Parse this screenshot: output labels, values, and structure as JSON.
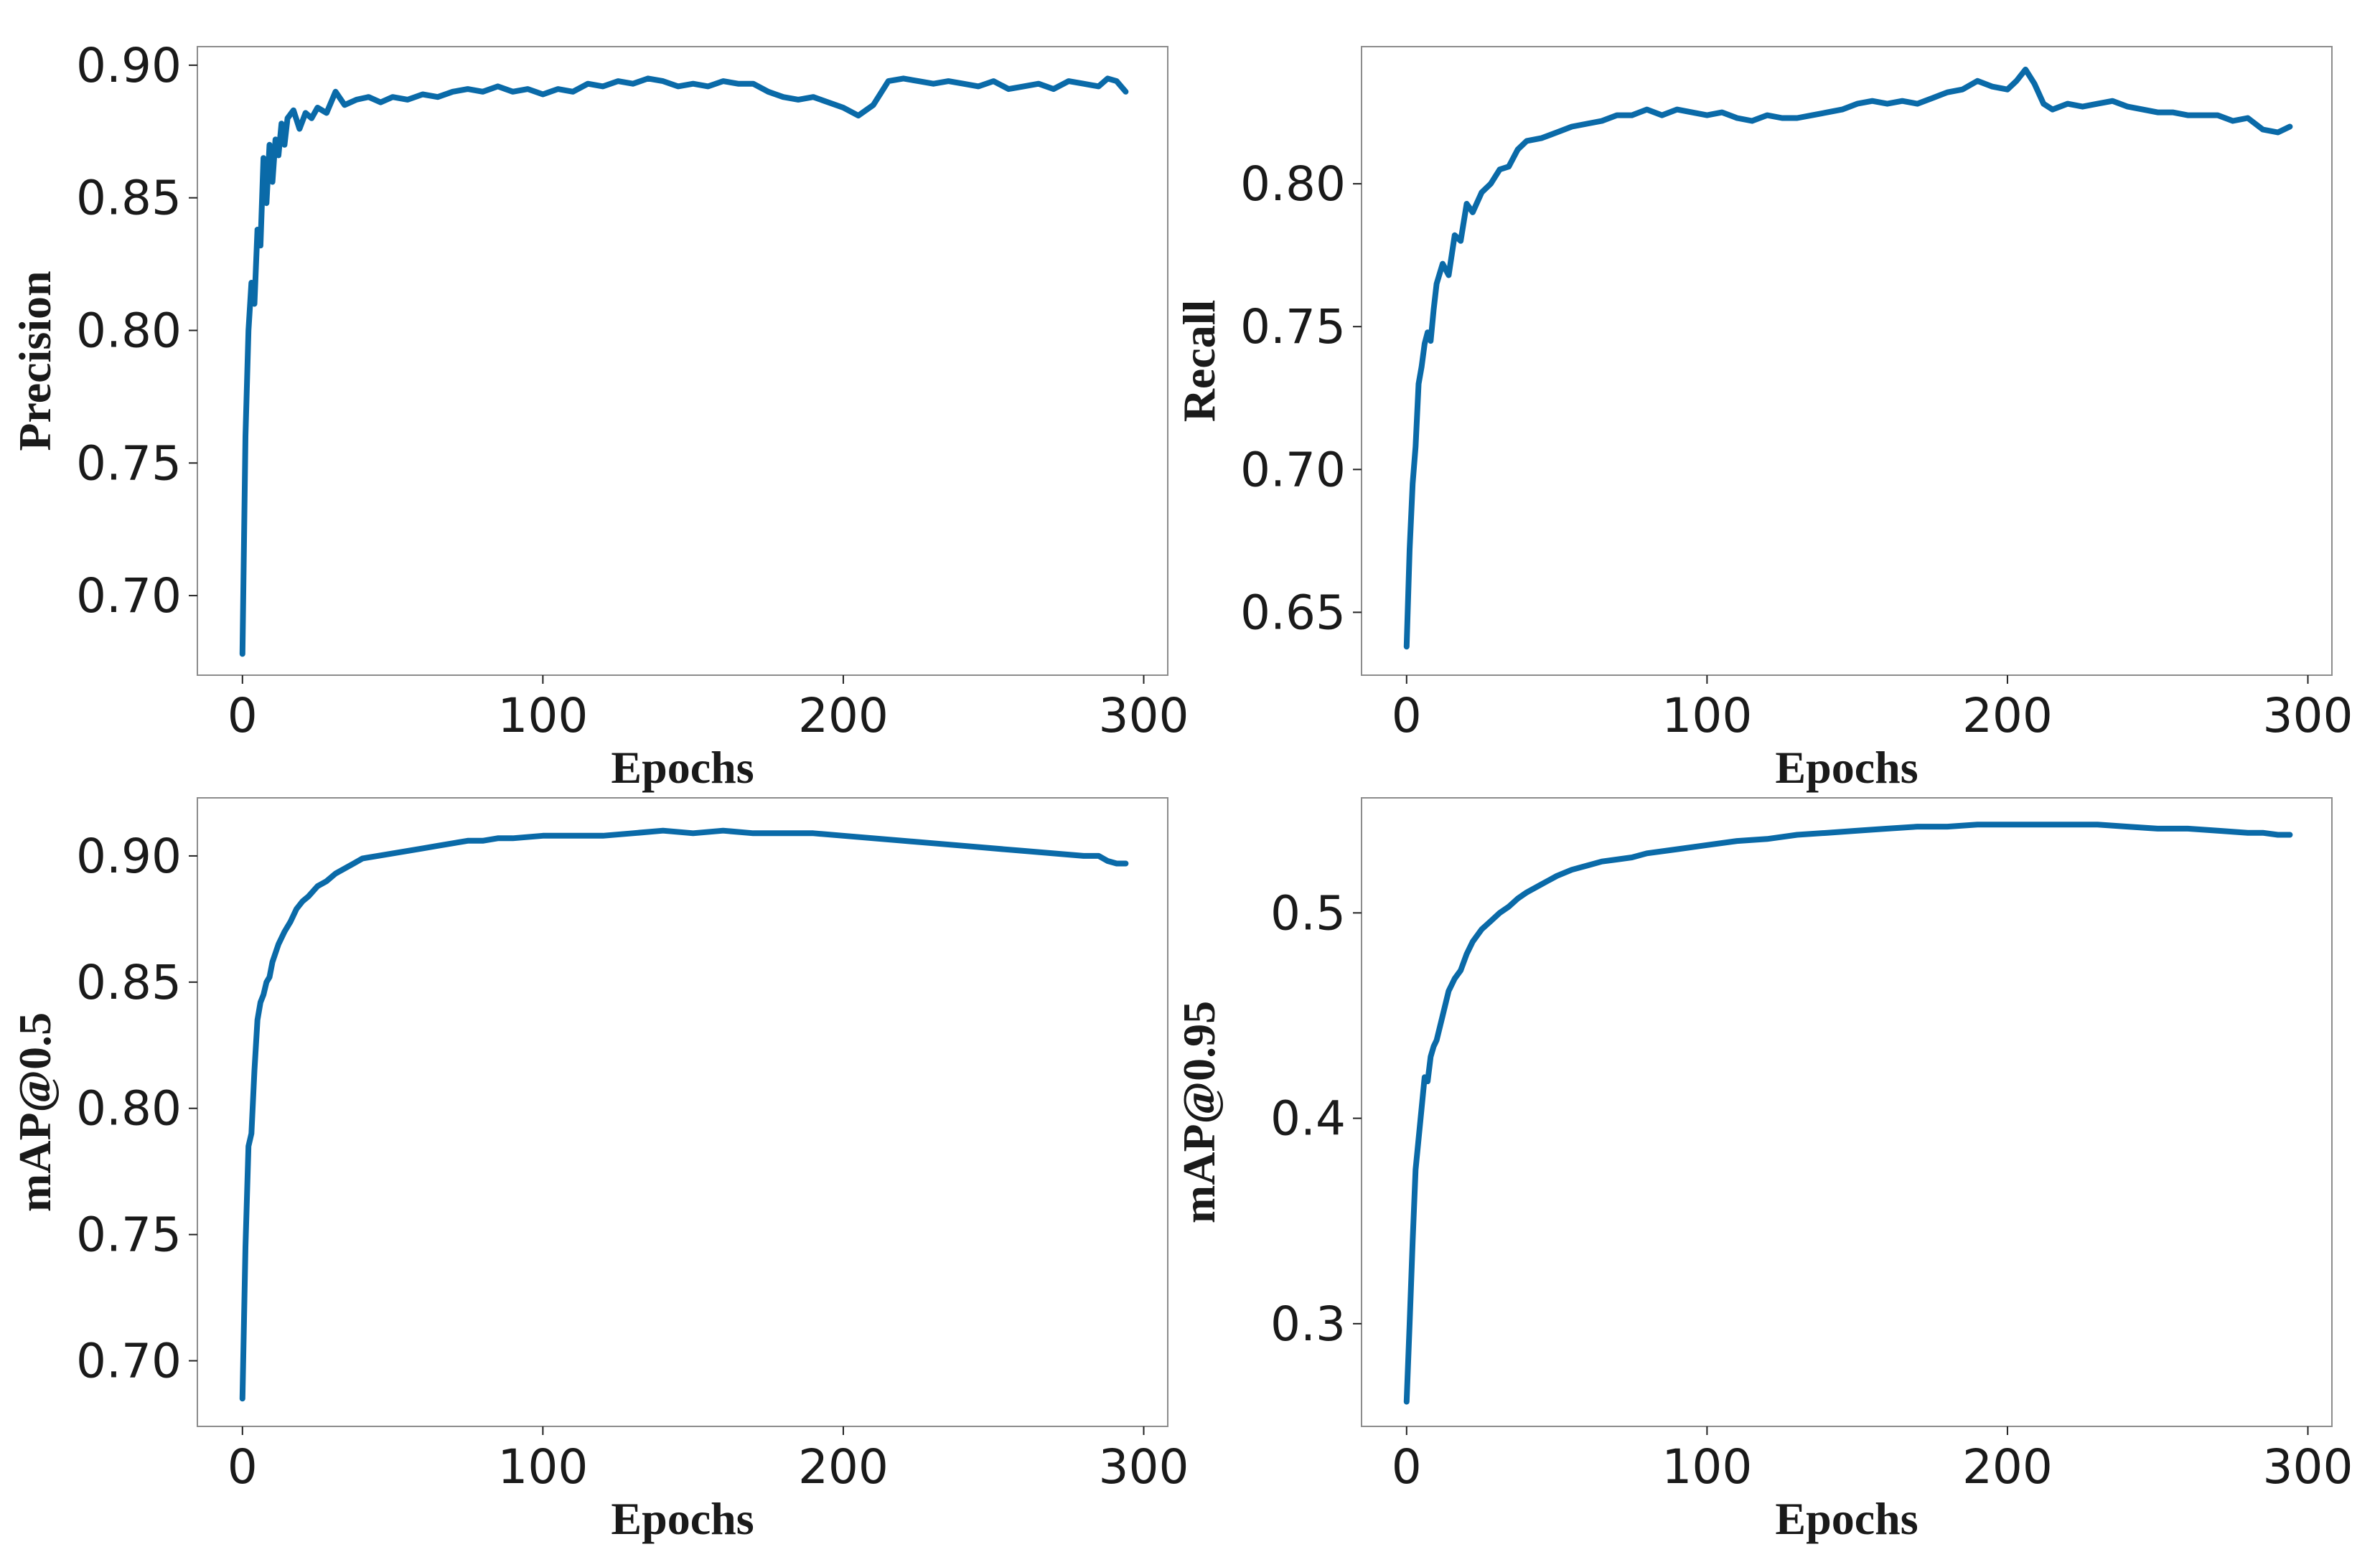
{
  "figure": {
    "color": "#0a6aa8",
    "frame_color": "#8c8c8c"
  },
  "chart_data": [
    {
      "type": "line",
      "xlabel": "Epochs",
      "ylabel": "Precision",
      "xlim": [
        -15,
        308
      ],
      "ylim": [
        0.67,
        0.907
      ],
      "xticks": [
        0,
        100,
        200,
        300
      ],
      "xtick_labels": [
        "0",
        "100",
        "200",
        "300"
      ],
      "yticks": [
        0.7,
        0.75,
        0.8,
        0.85,
        0.9
      ],
      "ytick_labels": [
        "0.70",
        "0.75",
        "0.80",
        "0.85",
        "0.90"
      ],
      "series": [
        {
          "color": "#0a6aa8",
          "x": [
            0,
            1,
            2,
            3,
            4,
            5,
            6,
            7,
            8,
            9,
            10,
            11,
            12,
            13,
            14,
            15,
            17,
            19,
            21,
            23,
            25,
            28,
            31,
            34,
            38,
            42,
            46,
            50,
            55,
            60,
            65,
            70,
            75,
            80,
            85,
            90,
            95,
            100,
            105,
            110,
            115,
            120,
            125,
            130,
            135,
            140,
            145,
            150,
            155,
            160,
            165,
            170,
            175,
            180,
            185,
            190,
            195,
            200,
            205,
            210,
            215,
            220,
            225,
            230,
            235,
            240,
            245,
            250,
            255,
            260,
            265,
            270,
            275,
            280,
            285,
            288,
            291,
            294
          ],
          "y": [
            0.678,
            0.76,
            0.8,
            0.818,
            0.81,
            0.838,
            0.832,
            0.865,
            0.848,
            0.87,
            0.856,
            0.872,
            0.866,
            0.878,
            0.87,
            0.88,
            0.883,
            0.876,
            0.882,
            0.88,
            0.884,
            0.882,
            0.89,
            0.885,
            0.887,
            0.888,
            0.886,
            0.888,
            0.887,
            0.889,
            0.888,
            0.89,
            0.891,
            0.89,
            0.892,
            0.89,
            0.891,
            0.889,
            0.891,
            0.89,
            0.893,
            0.892,
            0.894,
            0.893,
            0.895,
            0.894,
            0.892,
            0.893,
            0.892,
            0.894,
            0.893,
            0.893,
            0.89,
            0.888,
            0.887,
            0.888,
            0.886,
            0.884,
            0.881,
            0.885,
            0.894,
            0.895,
            0.894,
            0.893,
            0.894,
            0.893,
            0.892,
            0.894,
            0.891,
            0.892,
            0.893,
            0.891,
            0.894,
            0.893,
            0.892,
            0.895,
            0.894,
            0.89
          ]
        }
      ]
    },
    {
      "type": "line",
      "xlabel": "Epochs",
      "ylabel": "Recall",
      "xlim": [
        -15,
        308
      ],
      "ylim": [
        0.628,
        0.848
      ],
      "xticks": [
        0,
        100,
        200,
        300
      ],
      "xtick_labels": [
        "0",
        "100",
        "200",
        "300"
      ],
      "yticks": [
        0.65,
        0.7,
        0.75,
        0.8
      ],
      "ytick_labels": [
        "0.65",
        "0.70",
        "0.75",
        "0.80"
      ],
      "series": [
        {
          "color": "#0a6aa8",
          "x": [
            0,
            1,
            2,
            3,
            4,
            5,
            6,
            7,
            8,
            9,
            10,
            12,
            14,
            16,
            18,
            20,
            22,
            25,
            28,
            31,
            34,
            37,
            40,
            45,
            50,
            55,
            60,
            65,
            70,
            75,
            80,
            85,
            90,
            95,
            100,
            105,
            110,
            115,
            120,
            125,
            130,
            135,
            140,
            145,
            150,
            155,
            160,
            165,
            170,
            175,
            180,
            185,
            190,
            195,
            200,
            203,
            206,
            209,
            212,
            215,
            220,
            225,
            230,
            235,
            240,
            245,
            250,
            255,
            260,
            265,
            270,
            275,
            280,
            285,
            290,
            294
          ],
          "y": [
            0.638,
            0.672,
            0.695,
            0.708,
            0.73,
            0.736,
            0.744,
            0.748,
            0.745,
            0.756,
            0.765,
            0.772,
            0.768,
            0.782,
            0.78,
            0.793,
            0.79,
            0.797,
            0.8,
            0.805,
            0.806,
            0.812,
            0.815,
            0.816,
            0.818,
            0.82,
            0.821,
            0.822,
            0.824,
            0.824,
            0.826,
            0.824,
            0.826,
            0.825,
            0.824,
            0.825,
            0.823,
            0.822,
            0.824,
            0.823,
            0.823,
            0.824,
            0.825,
            0.826,
            0.828,
            0.829,
            0.828,
            0.829,
            0.828,
            0.83,
            0.832,
            0.833,
            0.836,
            0.834,
            0.833,
            0.836,
            0.84,
            0.835,
            0.828,
            0.826,
            0.828,
            0.827,
            0.828,
            0.829,
            0.827,
            0.826,
            0.825,
            0.825,
            0.824,
            0.824,
            0.824,
            0.822,
            0.823,
            0.819,
            0.818,
            0.82
          ]
        }
      ]
    },
    {
      "type": "line",
      "xlabel": "Epochs",
      "ylabel": "mAP@0.5",
      "xlim": [
        -15,
        308
      ],
      "ylim": [
        0.674,
        0.923
      ],
      "xticks": [
        0,
        100,
        200,
        300
      ],
      "xtick_labels": [
        "0",
        "100",
        "200",
        "300"
      ],
      "yticks": [
        0.7,
        0.75,
        0.8,
        0.85,
        0.9
      ],
      "ytick_labels": [
        "0.70",
        "0.75",
        "0.80",
        "0.85",
        "0.90"
      ],
      "series": [
        {
          "color": "#0a6aa8",
          "x": [
            0,
            1,
            2,
            3,
            4,
            5,
            6,
            7,
            8,
            9,
            10,
            12,
            14,
            16,
            18,
            20,
            22,
            25,
            28,
            31,
            34,
            37,
            40,
            45,
            50,
            55,
            60,
            65,
            70,
            75,
            80,
            85,
            90,
            100,
            110,
            120,
            130,
            140,
            150,
            160,
            170,
            180,
            190,
            200,
            210,
            220,
            230,
            240,
            250,
            260,
            270,
            280,
            285,
            288,
            291,
            294
          ],
          "y": [
            0.685,
            0.745,
            0.785,
            0.79,
            0.815,
            0.835,
            0.842,
            0.845,
            0.85,
            0.852,
            0.858,
            0.865,
            0.87,
            0.874,
            0.879,
            0.882,
            0.884,
            0.888,
            0.89,
            0.893,
            0.895,
            0.897,
            0.899,
            0.9,
            0.901,
            0.902,
            0.903,
            0.904,
            0.905,
            0.906,
            0.906,
            0.907,
            0.907,
            0.908,
            0.908,
            0.908,
            0.909,
            0.91,
            0.909,
            0.91,
            0.909,
            0.909,
            0.909,
            0.908,
            0.907,
            0.906,
            0.905,
            0.904,
            0.903,
            0.902,
            0.901,
            0.9,
            0.9,
            0.898,
            0.897,
            0.897
          ]
        }
      ]
    },
    {
      "type": "line",
      "xlabel": "Epochs",
      "ylabel": "mAP@0.95",
      "xlim": [
        -15,
        308
      ],
      "ylim": [
        0.25,
        0.556
      ],
      "xticks": [
        0,
        100,
        200,
        300
      ],
      "xtick_labels": [
        "0",
        "100",
        "200",
        "300"
      ],
      "yticks": [
        0.3,
        0.4,
        0.5
      ],
      "ytick_labels": [
        "0.3",
        "0.4",
        "0.5"
      ],
      "series": [
        {
          "color": "#0a6aa8",
          "x": [
            0,
            1,
            2,
            3,
            4,
            5,
            6,
            7,
            8,
            9,
            10,
            12,
            14,
            16,
            18,
            20,
            22,
            25,
            28,
            31,
            34,
            37,
            40,
            45,
            50,
            55,
            60,
            65,
            70,
            75,
            80,
            90,
            100,
            110,
            120,
            130,
            140,
            150,
            160,
            170,
            180,
            190,
            200,
            210,
            220,
            230,
            240,
            250,
            260,
            270,
            280,
            285,
            290,
            294
          ],
          "y": [
            0.262,
            0.3,
            0.34,
            0.375,
            0.39,
            0.405,
            0.42,
            0.418,
            0.43,
            0.435,
            0.438,
            0.45,
            0.462,
            0.468,
            0.472,
            0.48,
            0.486,
            0.492,
            0.496,
            0.5,
            0.503,
            0.507,
            0.51,
            0.514,
            0.518,
            0.521,
            0.523,
            0.525,
            0.526,
            0.527,
            0.529,
            0.531,
            0.533,
            0.535,
            0.536,
            0.538,
            0.539,
            0.54,
            0.541,
            0.542,
            0.542,
            0.543,
            0.543,
            0.543,
            0.543,
            0.543,
            0.542,
            0.541,
            0.541,
            0.54,
            0.539,
            0.539,
            0.538,
            0.538
          ]
        }
      ]
    }
  ]
}
